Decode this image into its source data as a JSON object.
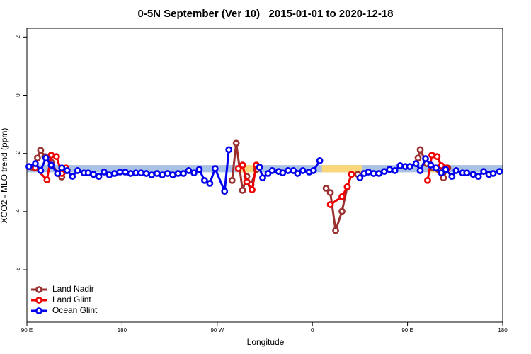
{
  "chart_data": {
    "type": "line",
    "title": "0-5N September (Ver 10)   2015-01-01 to 2020-12-18",
    "x_label": "Longitude",
    "y_label": "XCO2 - MLO trend (ppm)",
    "xlim": [
      90,
      540
    ],
    "ylim": [
      -7.8,
      2.3
    ],
    "xticks": [
      {
        "value": 90,
        "label": "90 E"
      },
      180,
      {
        "value": 270,
        "label": "90 W"
      },
      {
        "value": 360,
        "label": "0"
      },
      {
        "value": 450,
        "label": "90 E"
      },
      180
    ],
    "yticks": [
      2,
      0,
      -2,
      -4,
      -6
    ],
    "legend": "bottomleft",
    "band_ylim": [
      -2.4,
      -2.65
    ],
    "regions": [
      {
        "x": [
          90,
          540
        ],
        "color": "#a9c1e4"
      },
      {
        "x": [
          293,
          305
        ],
        "color": "#fad77a"
      },
      {
        "x": [
          369,
          407
        ],
        "color": "#fad77a"
      },
      {
        "x": [
          472,
          490
        ],
        "color": "#fad77a"
      }
    ],
    "series": [
      {
        "name": "Land Nadir",
        "color": "#9b3030",
        "x": [
          95,
          100,
          103,
          107,
          113,
          119,
          123,
          128,
          null,
          284,
          288,
          294,
          298,
          302,
          307,
          null,
          373,
          377,
          382,
          388,
          393,
          397,
          403,
          null,
          460,
          462,
          468,
          474,
          479,
          484,
          488
        ],
        "values": [
          -2.47,
          -2.16,
          -1.89,
          -2.11,
          -2.3,
          -2.69,
          -2.81,
          -2.59,
          null,
          -2.93,
          -1.65,
          -3.27,
          -2.79,
          -3.08,
          -2.55,
          null,
          -3.2,
          -3.35,
          -4.65,
          -3.99,
          -3.15,
          -2.72,
          -2.72,
          null,
          -2.16,
          -1.87,
          -2.35,
          -2.5,
          -2.55,
          -2.84,
          -2.5
        ]
      },
      {
        "name": "Land Glint",
        "color": "#ee0000",
        "x": [
          98,
          109,
          113,
          118,
          123,
          127,
          null,
          290,
          294,
          298,
          303,
          307,
          null,
          377,
          388,
          393,
          397,
          null,
          469,
          473,
          478,
          482,
          487
        ],
        "values": [
          -2.5,
          -2.91,
          -2.06,
          -2.11,
          -2.69,
          -2.5,
          null,
          -2.52,
          -2.4,
          -2.98,
          -3.25,
          -2.4,
          null,
          -3.76,
          -3.49,
          -3.15,
          -2.72,
          null,
          -2.93,
          -2.06,
          -2.11,
          -2.42,
          -2.5
        ]
      },
      {
        "name": "Ocean Glint",
        "color": "#0000ee",
        "x": [
          92,
          98,
          103,
          108,
          113,
          119,
          123,
          128,
          133,
          138,
          144,
          148,
          153,
          158,
          163,
          168,
          173,
          178,
          183,
          188,
          193,
          198,
          203,
          208,
          213,
          218,
          223,
          228,
          233,
          238,
          243,
          248,
          253,
          258,
          263,
          268,
          277,
          281,
          null,
          310,
          313,
          318,
          322,
          328,
          332,
          337,
          342,
          346,
          351,
          357,
          361,
          367,
          null,
          405,
          409,
          413,
          418,
          423,
          428,
          433,
          438,
          443,
          448,
          452,
          458,
          462,
          467,
          472,
          477,
          482,
          486,
          492,
          496,
          502,
          506,
          512,
          517,
          522,
          527,
          531,
          537
        ],
        "values": [
          -2.45,
          -2.35,
          -2.59,
          -2.16,
          -2.4,
          -2.69,
          -2.5,
          -2.59,
          -2.79,
          -2.59,
          -2.67,
          -2.67,
          -2.72,
          -2.79,
          -2.64,
          -2.74,
          -2.69,
          -2.64,
          -2.64,
          -2.69,
          -2.67,
          -2.67,
          -2.69,
          -2.74,
          -2.69,
          -2.74,
          -2.69,
          -2.74,
          -2.69,
          -2.69,
          -2.59,
          -2.67,
          -2.55,
          -2.93,
          -3.03,
          -2.52,
          -3.3,
          -1.87,
          null,
          -2.47,
          -2.84,
          -2.69,
          -2.59,
          -2.62,
          -2.67,
          -2.59,
          -2.59,
          -2.69,
          -2.59,
          -2.64,
          -2.59,
          -2.25,
          null,
          -2.84,
          -2.69,
          -2.64,
          -2.69,
          -2.69,
          -2.62,
          -2.55,
          -2.59,
          -2.42,
          -2.45,
          -2.45,
          -2.35,
          -2.59,
          -2.18,
          -2.4,
          -2.5,
          -2.67,
          -2.55,
          -2.79,
          -2.59,
          -2.67,
          -2.67,
          -2.72,
          -2.79,
          -2.62,
          -2.72,
          -2.69,
          -2.62
        ]
      }
    ]
  }
}
